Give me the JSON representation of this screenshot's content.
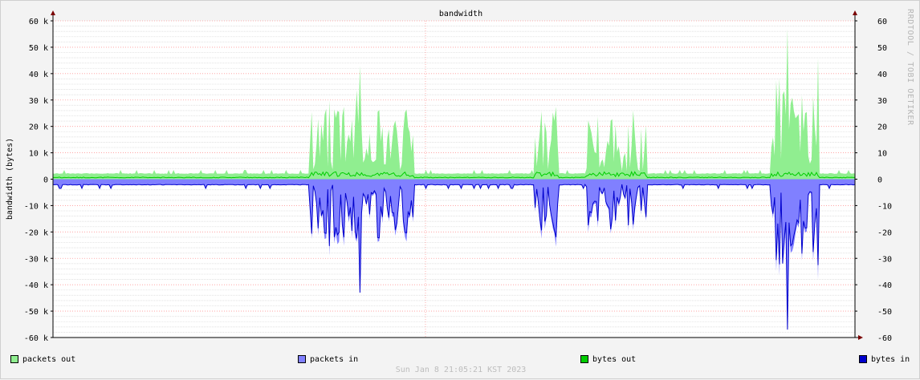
{
  "chart_data": {
    "type": "area",
    "title": "bandwidth",
    "ylabel": "bandwidth (bytes)",
    "ylim": [
      -60000,
      60000
    ],
    "yticks": [
      {
        "value": 60000,
        "label": "60 k"
      },
      {
        "value": 50000,
        "label": "50 k"
      },
      {
        "value": 40000,
        "label": "40 k"
      },
      {
        "value": 30000,
        "label": "30 k"
      },
      {
        "value": 20000,
        "label": "20 k"
      },
      {
        "value": 10000,
        "label": "10 k"
      },
      {
        "value": 0,
        "label": "0"
      },
      {
        "value": -10000,
        "label": "-10 k"
      },
      {
        "value": -20000,
        "label": "-20 k"
      },
      {
        "value": -30000,
        "label": "-30 k"
      },
      {
        "value": -40000,
        "label": "-40 k"
      },
      {
        "value": -50000,
        "label": "-50 k"
      },
      {
        "value": -60000,
        "label": "-60 k"
      }
    ],
    "yticks_right": [
      {
        "value": 60000,
        "label": "60"
      },
      {
        "value": 50000,
        "label": "50"
      },
      {
        "value": 40000,
        "label": "40"
      },
      {
        "value": 30000,
        "label": "30"
      },
      {
        "value": 20000,
        "label": "20"
      },
      {
        "value": 10000,
        "label": "10"
      },
      {
        "value": 0,
        "label": "0"
      },
      {
        "value": -10000,
        "label": "-10"
      },
      {
        "value": -20000,
        "label": "-20"
      },
      {
        "value": -30000,
        "label": "-30"
      },
      {
        "value": -40000,
        "label": "-40"
      },
      {
        "value": -50000,
        "label": "-50"
      },
      {
        "value": -60000,
        "label": "-60"
      }
    ],
    "grid": true,
    "legend_position": "bottom",
    "series": [
      {
        "name": "packets out",
        "color": "#90ee90",
        "fill": "area",
        "sign": "positive"
      },
      {
        "name": "packets in",
        "color": "#8080ff",
        "fill": "area",
        "sign": "negative"
      },
      {
        "name": "bytes out",
        "color": "#00cc00",
        "fill": "line",
        "sign": "positive"
      },
      {
        "name": "bytes in",
        "color": "#0000cc",
        "fill": "line",
        "sign": "negative"
      }
    ],
    "bursts": [
      {
        "from": 0.32,
        "to": 0.45,
        "peak": 24000,
        "max": 43000,
        "min_out": 2000
      },
      {
        "from": 0.6,
        "to": 0.63,
        "peak": 26000,
        "max": 26000,
        "min_out": 2000
      },
      {
        "from": 0.665,
        "to": 0.74,
        "peak": 24000,
        "max": 24000,
        "min_out": 2000
      },
      {
        "from": 0.895,
        "to": 0.955,
        "peak": 32000,
        "max": 57000,
        "min_out": 2000
      }
    ],
    "baseline_out": 2000,
    "baseline_in": -2000
  },
  "timestamp": "Sun Jan  8 21:05:21 KST 2023",
  "watermark": "RRDTOOL / TOBI OETIKER",
  "colors": {
    "background": "#f3f3f3",
    "plot_bg": "#ffffff",
    "grid_major": "#ff9999",
    "grid_minor": "#dddddd",
    "axis": "#7a0000"
  }
}
